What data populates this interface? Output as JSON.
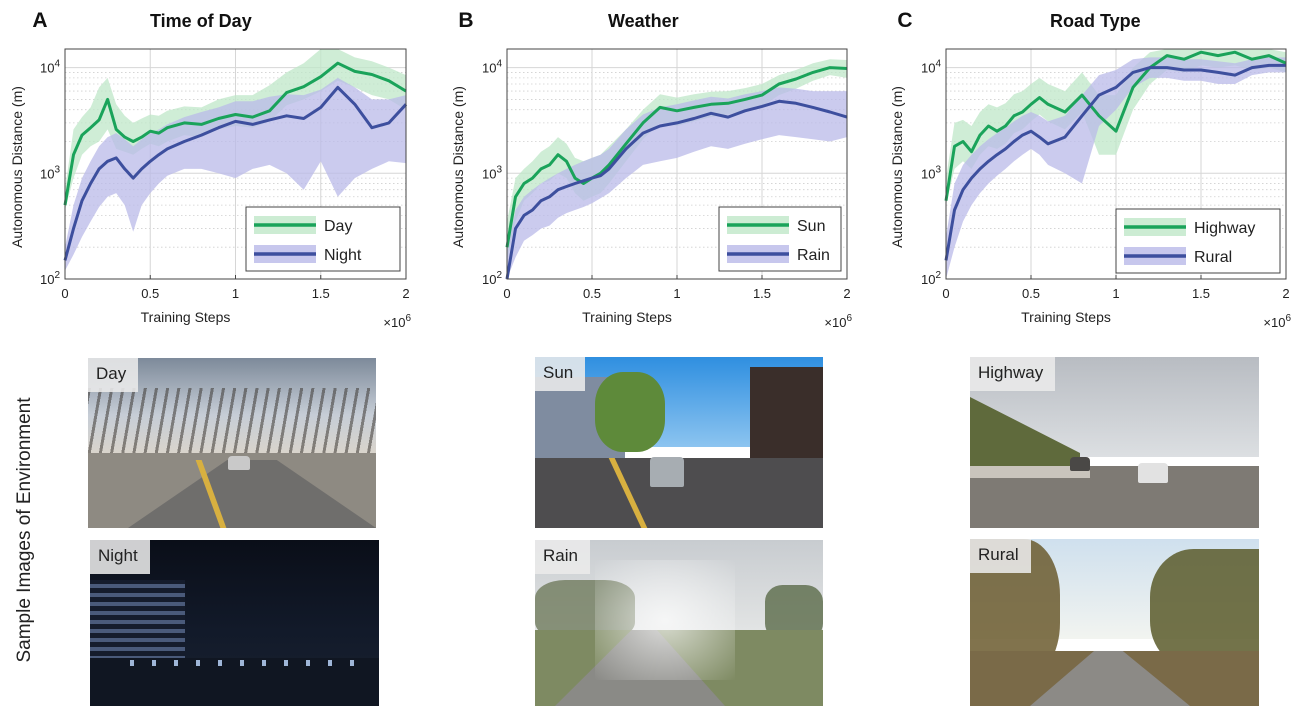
{
  "side_label": "Sample Images of Environment",
  "colors": {
    "green": "#1aa35a",
    "green_band": "#bfe7c8",
    "blue": "#3d4f9e",
    "blue_band": "#b9b9e8"
  },
  "chart_data": [
    {
      "type": "line",
      "panel_letter": "A",
      "title": "Time of Day",
      "xlabel": "Training Steps",
      "ylabel": "Autonomous Distance (m)",
      "x_exponent_label": "×10",
      "x_exponent": "6",
      "xlim": [
        0,
        2
      ],
      "ylim": [
        100,
        15000
      ],
      "yscale": "log",
      "xticks": [
        "0",
        "0.5",
        "1",
        "1.5",
        "2"
      ],
      "yticks": [
        {
          "base": "10",
          "exp": "2"
        },
        {
          "base": "10",
          "exp": "3"
        },
        {
          "base": "10",
          "exp": "4"
        }
      ],
      "grid": true,
      "legend_position": "bottom-right",
      "series": [
        {
          "name": "Day",
          "color_key": "green",
          "x": [
            0,
            0.05,
            0.1,
            0.15,
            0.2,
            0.25,
            0.3,
            0.35,
            0.4,
            0.45,
            0.5,
            0.55,
            0.6,
            0.7,
            0.8,
            0.9,
            1.0,
            1.1,
            1.2,
            1.3,
            1.4,
            1.5,
            1.6,
            1.7,
            1.8,
            1.9,
            2.0
          ],
          "y": [
            500,
            1500,
            2300,
            2700,
            3200,
            5000,
            2600,
            2200,
            2000,
            2200,
            2500,
            2400,
            2700,
            3000,
            2900,
            3300,
            3600,
            3400,
            3900,
            5800,
            6600,
            8200,
            11000,
            9200,
            8600,
            7500,
            6000
          ],
          "lower": [
            450,
            900,
            1500,
            1800,
            2000,
            2600,
            1700,
            1600,
            1500,
            1700,
            1900,
            1800,
            2000,
            2300,
            2200,
            2600,
            2800,
            2700,
            3100,
            4400,
            5000,
            6000,
            7500,
            6500,
            5500,
            5000,
            4000
          ],
          "upper": [
            700,
            2600,
            3400,
            4200,
            6500,
            8000,
            4500,
            3500,
            3000,
            3300,
            3600,
            3500,
            3900,
            4300,
            4200,
            5000,
            5500,
            5500,
            6800,
            9000,
            11000,
            15000,
            15000,
            12500,
            11500,
            10000,
            8500
          ]
        },
        {
          "name": "Night",
          "color_key": "blue",
          "x": [
            0,
            0.05,
            0.1,
            0.15,
            0.2,
            0.25,
            0.3,
            0.35,
            0.4,
            0.45,
            0.5,
            0.55,
            0.6,
            0.7,
            0.8,
            0.9,
            1.0,
            1.1,
            1.2,
            1.3,
            1.4,
            1.5,
            1.6,
            1.7,
            1.8,
            1.9,
            2.0
          ],
          "y": [
            150,
            300,
            550,
            800,
            1100,
            1300,
            1400,
            1100,
            900,
            1100,
            1300,
            1500,
            1700,
            2000,
            2300,
            2700,
            3100,
            2900,
            3200,
            3500,
            3300,
            4200,
            6500,
            4500,
            2700,
            3000,
            4500
          ],
          "lower": [
            120,
            170,
            250,
            350,
            480,
            600,
            650,
            500,
            280,
            500,
            650,
            800,
            950,
            1100,
            1100,
            1000,
            900,
            1100,
            1200,
            1000,
            700,
            1300,
            600,
            900,
            1100,
            1300,
            1250
          ],
          "upper": [
            200,
            500,
            900,
            1300,
            1800,
            2200,
            2400,
            2100,
            1800,
            2100,
            2400,
            2600,
            2900,
            3400,
            3800,
            4200,
            4800,
            4800,
            5300,
            5600,
            5500,
            6200,
            8000,
            6500,
            5000,
            5000,
            5500
          ]
        }
      ]
    },
    {
      "type": "line",
      "panel_letter": "B",
      "title": "Weather",
      "xlabel": "Training Steps",
      "ylabel": "Autonomous Distance (m)",
      "x_exponent_label": "×10",
      "x_exponent": "6",
      "xlim": [
        0,
        2
      ],
      "ylim": [
        100,
        15000
      ],
      "yscale": "log",
      "xticks": [
        "0",
        "0.5",
        "1",
        "1.5",
        "2"
      ],
      "yticks": [
        {
          "base": "10",
          "exp": "2"
        },
        {
          "base": "10",
          "exp": "3"
        },
        {
          "base": "10",
          "exp": "4"
        }
      ],
      "grid": true,
      "legend_position": "bottom-right",
      "series": [
        {
          "name": "Sun",
          "color_key": "green",
          "x": [
            0,
            0.05,
            0.1,
            0.15,
            0.2,
            0.25,
            0.3,
            0.35,
            0.4,
            0.45,
            0.5,
            0.55,
            0.6,
            0.7,
            0.8,
            0.9,
            1.0,
            1.1,
            1.2,
            1.3,
            1.4,
            1.5,
            1.6,
            1.7,
            1.8,
            1.9,
            2.0
          ],
          "y": [
            200,
            600,
            800,
            900,
            1100,
            1200,
            1500,
            1300,
            900,
            800,
            900,
            1000,
            1200,
            1900,
            3000,
            4200,
            3900,
            4200,
            4500,
            4600,
            5000,
            5500,
            7000,
            7800,
            9000,
            10000,
            9800
          ],
          "lower": [
            150,
            350,
            550,
            650,
            800,
            850,
            1000,
            900,
            650,
            550,
            600,
            650,
            800,
            1300,
            2100,
            3000,
            2800,
            3100,
            3400,
            3600,
            3900,
            4300,
            5500,
            6300,
            7500,
            8500,
            8000
          ],
          "upper": [
            350,
            900,
            1100,
            1300,
            1600,
            1800,
            2200,
            1900,
            1400,
            1300,
            1400,
            1500,
            1800,
            2600,
            4000,
            5600,
            5200,
            5600,
            5900,
            6000,
            6400,
            7000,
            8500,
            9500,
            11000,
            12000,
            11800
          ]
        },
        {
          "name": "Rain",
          "color_key": "blue",
          "x": [
            0,
            0.05,
            0.1,
            0.15,
            0.2,
            0.25,
            0.3,
            0.35,
            0.4,
            0.45,
            0.5,
            0.55,
            0.6,
            0.7,
            0.8,
            0.9,
            1.0,
            1.1,
            1.2,
            1.3,
            1.4,
            1.5,
            1.6,
            1.7,
            1.8,
            1.9,
            2.0
          ],
          "y": [
            100,
            300,
            400,
            450,
            550,
            600,
            700,
            750,
            800,
            850,
            900,
            950,
            1100,
            1700,
            2400,
            2800,
            3000,
            3300,
            3700,
            3400,
            3900,
            4300,
            4800,
            4600,
            4200,
            3800,
            3400
          ],
          "lower": [
            100,
            160,
            230,
            260,
            300,
            320,
            380,
            420,
            450,
            480,
            520,
            580,
            650,
            900,
            1200,
            1300,
            1400,
            1600,
            1800,
            1700,
            1900,
            2100,
            2300,
            2200,
            2100,
            2000,
            2200
          ],
          "upper": [
            180,
            450,
            600,
            700,
            800,
            900,
            1000,
            1100,
            1200,
            1300,
            1400,
            1500,
            1700,
            2600,
            3600,
            4200,
            4500,
            4900,
            5300,
            5100,
            5600,
            6000,
            6500,
            6300,
            6000,
            6000,
            6000
          ]
        }
      ]
    },
    {
      "type": "line",
      "panel_letter": "C",
      "title": "Road Type",
      "xlabel": "Training Steps",
      "ylabel": "Autonomous Distance (m)",
      "x_exponent_label": "×10",
      "x_exponent": "6",
      "xlim": [
        0,
        2
      ],
      "ylim": [
        100,
        15000
      ],
      "yscale": "log",
      "xticks": [
        "0",
        "0.5",
        "1",
        "1.5",
        "2"
      ],
      "yticks": [
        {
          "base": "10",
          "exp": "2"
        },
        {
          "base": "10",
          "exp": "3"
        },
        {
          "base": "10",
          "exp": "4"
        }
      ],
      "grid": true,
      "legend_position": "bottom-right",
      "series": [
        {
          "name": "Highway",
          "color_key": "green",
          "x": [
            0,
            0.05,
            0.1,
            0.15,
            0.2,
            0.25,
            0.3,
            0.35,
            0.4,
            0.45,
            0.5,
            0.55,
            0.6,
            0.7,
            0.8,
            0.9,
            1.0,
            1.1,
            1.2,
            1.3,
            1.4,
            1.5,
            1.6,
            1.7,
            1.8,
            1.9,
            2.0
          ],
          "y": [
            550,
            1800,
            2000,
            1600,
            2300,
            2800,
            2500,
            2800,
            3500,
            3800,
            4500,
            5200,
            4500,
            3800,
            5500,
            3500,
            2500,
            6500,
            10000,
            13000,
            12000,
            14000,
            13000,
            14000,
            12000,
            13000,
            11000
          ],
          "lower": [
            500,
            1100,
            1300,
            1100,
            1500,
            1800,
            1700,
            1900,
            2400,
            2600,
            3100,
            3600,
            3100,
            2600,
            3800,
            1500,
            1500,
            4000,
            7000,
            9500,
            9000,
            10500,
            10000,
            10500,
            9500,
            10000,
            9000
          ],
          "upper": [
            900,
            3000,
            3200,
            2800,
            3800,
            4500,
            4200,
            4600,
            5600,
            6000,
            7000,
            8000,
            7000,
            6000,
            9000,
            5500,
            5500,
            10000,
            14000,
            15000,
            15000,
            15000,
            15000,
            15000,
            15000,
            15000,
            14000
          ]
        },
        {
          "name": "Rural",
          "color_key": "blue",
          "x": [
            0,
            0.05,
            0.1,
            0.15,
            0.2,
            0.25,
            0.3,
            0.35,
            0.4,
            0.45,
            0.5,
            0.55,
            0.6,
            0.7,
            0.8,
            0.9,
            1.0,
            1.1,
            1.2,
            1.3,
            1.4,
            1.5,
            1.6,
            1.7,
            1.8,
            1.9,
            2.0
          ],
          "y": [
            150,
            450,
            700,
            900,
            1100,
            1300,
            1500,
            1700,
            2000,
            2300,
            2500,
            2200,
            1900,
            2200,
            3500,
            5500,
            6500,
            9000,
            10000,
            10000,
            9500,
            9500,
            9000,
            8500,
            10000,
            10500,
            10500
          ],
          "lower": [
            100,
            200,
            350,
            500,
            650,
            800,
            950,
            1100,
            1300,
            1500,
            1700,
            1500,
            1200,
            1000,
            800,
            2800,
            4000,
            6500,
            8000,
            8000,
            7500,
            7500,
            7000,
            7000,
            8500,
            9000,
            9000
          ],
          "upper": [
            250,
            800,
            1200,
            1500,
            1800,
            2100,
            2400,
            2700,
            3100,
            3500,
            3800,
            3500,
            3100,
            3500,
            5500,
            8500,
            9500,
            12000,
            12500,
            12500,
            12000,
            12000,
            11500,
            11000,
            12000,
            12500,
            12500
          ]
        }
      ]
    }
  ],
  "photos": [
    {
      "label": "Day"
    },
    {
      "label": "Night"
    },
    {
      "label": "Sun"
    },
    {
      "label": "Rain"
    },
    {
      "label": "Highway"
    },
    {
      "label": "Rural"
    }
  ]
}
